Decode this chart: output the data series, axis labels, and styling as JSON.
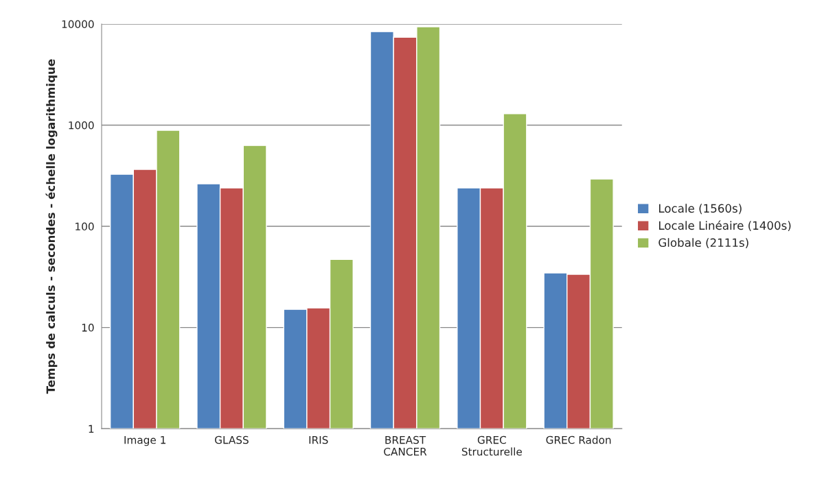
{
  "chart_data": {
    "type": "bar",
    "ylabel": "Temps de calculs - secondes - échelle logarithmique",
    "categories": [
      "Image 1",
      "GLASS",
      "IRIS",
      "BREAST\nCANCER",
      "GREC\nStructurelle",
      "GREC Radon"
    ],
    "series": [
      {
        "name": "Locale (1560s)",
        "color": "#4f81bd",
        "values": [
          327,
          263,
          15.1,
          8400,
          240,
          34.6
        ]
      },
      {
        "name": "Locale Linéaire (1400s)",
        "color": "#c0504d",
        "values": [
          365,
          240,
          15.6,
          7400,
          240,
          33.5
        ]
      },
      {
        "name": "Globale (2111s)",
        "color": "#9bbb59",
        "values": [
          890,
          630,
          47,
          9400,
          1300,
          294
        ]
      }
    ],
    "log": true,
    "ylim": [
      1,
      10000
    ],
    "yticks": [
      1,
      10,
      100,
      1000,
      10000
    ],
    "grid": "y",
    "legend": "right"
  }
}
